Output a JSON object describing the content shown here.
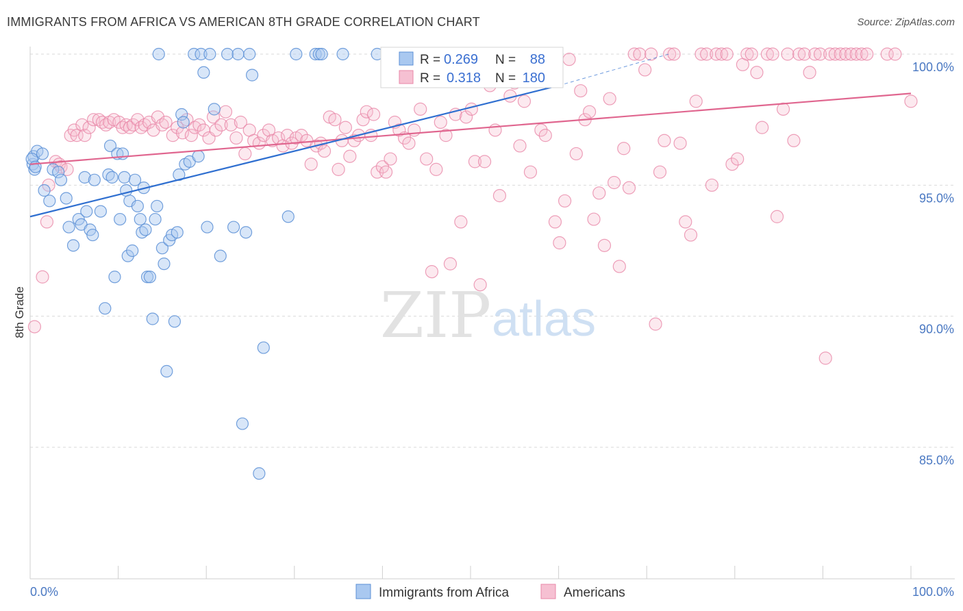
{
  "header": {
    "title": "IMMIGRANTS FROM AFRICA VS AMERICAN 8TH GRADE CORRELATION CHART",
    "source": "Source: ZipAtlas.com"
  },
  "watermark": {
    "zip": "ZIP",
    "atlas": "atlas"
  },
  "legend_box": {
    "row1": {
      "r_label": "R =",
      "r_value": "0.269",
      "n_label": "N =",
      "n_value": "88"
    },
    "row2": {
      "r_label": "R =",
      "r_value": "0.318",
      "n_label": "N =",
      "n_value": "180"
    }
  },
  "bottom_legend": {
    "series1": "Immigrants from Africa",
    "series2": "Americans"
  },
  "colors": {
    "blue_fill": "#a9c8f0",
    "blue_stroke": "#5b8fd6",
    "blue_line": "#2f6fd0",
    "pink_fill": "#f6c0d2",
    "pink_stroke": "#e887a8",
    "pink_line": "#e0668f",
    "tick_text": "#4a78c2",
    "grid": "#d9d9d9"
  },
  "chart_data": {
    "type": "scatter",
    "title": "IMMIGRANTS FROM AFRICA VS AMERICAN 8TH GRADE CORRELATION CHART",
    "xlabel": "",
    "ylabel": "8th Grade",
    "xlim": [
      0,
      100
    ],
    "ylim": [
      80.0,
      100.6
    ],
    "x_tick_labels": [
      "0.0%",
      "100.0%"
    ],
    "y_ticks": [
      85,
      90,
      95,
      100
    ],
    "y_tick_labels": [
      "85.0%",
      "90.0%",
      "95.0%",
      "100.0%"
    ],
    "grid": true,
    "legend_position": "top-center",
    "series": [
      {
        "name": "Immigrants from Africa",
        "r": 0.269,
        "n": 88,
        "trend": {
          "x": [
            0,
            60
          ],
          "y": [
            93.8,
            98.8
          ]
        },
        "trend_extension": {
          "x": [
            60,
            72.5
          ],
          "y": [
            98.8,
            100.0
          ]
        },
        "points": [
          [
            0.3,
            95.8
          ],
          [
            0.4,
            96.1
          ],
          [
            0.8,
            96.3
          ],
          [
            0.5,
            95.6
          ],
          [
            1.4,
            96.2
          ],
          [
            1.6,
            94.8
          ],
          [
            2.2,
            94.4
          ],
          [
            2.6,
            95.6
          ],
          [
            3.2,
            95.5
          ],
          [
            3.5,
            95.2
          ],
          [
            4.1,
            94.5
          ],
          [
            4.4,
            93.4
          ],
          [
            4.9,
            92.7
          ],
          [
            5.5,
            93.7
          ],
          [
            5.8,
            93.5
          ],
          [
            6.2,
            95.3
          ],
          [
            6.4,
            94.0
          ],
          [
            6.8,
            93.3
          ],
          [
            7.1,
            93.1
          ],
          [
            7.3,
            95.2
          ],
          [
            8.0,
            94.0
          ],
          [
            8.5,
            90.3
          ],
          [
            8.9,
            95.4
          ],
          [
            9.1,
            96.5
          ],
          [
            9.3,
            95.3
          ],
          [
            9.6,
            91.5
          ],
          [
            9.9,
            96.2
          ],
          [
            10.2,
            93.7
          ],
          [
            10.5,
            96.2
          ],
          [
            10.7,
            95.3
          ],
          [
            10.9,
            94.8
          ],
          [
            11.1,
            92.3
          ],
          [
            11.3,
            94.4
          ],
          [
            11.6,
            92.5
          ],
          [
            11.9,
            95.2
          ],
          [
            12.2,
            94.2
          ],
          [
            12.5,
            93.7
          ],
          [
            12.7,
            93.2
          ],
          [
            12.9,
            94.9
          ],
          [
            13.1,
            93.3
          ],
          [
            13.3,
            91.5
          ],
          [
            13.6,
            91.5
          ],
          [
            13.9,
            89.9
          ],
          [
            14.2,
            93.7
          ],
          [
            14.4,
            94.2
          ],
          [
            14.6,
            100.0
          ],
          [
            15.0,
            92.6
          ],
          [
            15.2,
            92.0
          ],
          [
            15.5,
            87.9
          ],
          [
            15.8,
            92.9
          ],
          [
            16.1,
            93.1
          ],
          [
            16.4,
            89.8
          ],
          [
            16.7,
            93.2
          ],
          [
            16.9,
            95.4
          ],
          [
            17.2,
            97.7
          ],
          [
            17.4,
            97.4
          ],
          [
            17.6,
            95.8
          ],
          [
            18.1,
            95.9
          ],
          [
            18.6,
            100.0
          ],
          [
            19.1,
            96.1
          ],
          [
            19.4,
            100.0
          ],
          [
            19.7,
            99.3
          ],
          [
            20.1,
            93.4
          ],
          [
            20.4,
            100.0
          ],
          [
            20.9,
            97.9
          ],
          [
            21.6,
            92.3
          ],
          [
            22.4,
            100.0
          ],
          [
            23.1,
            93.4
          ],
          [
            23.6,
            100.0
          ],
          [
            24.1,
            85.9
          ],
          [
            24.5,
            93.2
          ],
          [
            24.9,
            100.0
          ],
          [
            25.2,
            99.2
          ],
          [
            26.0,
            84.0
          ],
          [
            26.5,
            88.8
          ],
          [
            29.3,
            93.8
          ],
          [
            30.2,
            100.0
          ],
          [
            32.4,
            100.0
          ],
          [
            32.8,
            100.0
          ],
          [
            33.1,
            100.0
          ],
          [
            35.5,
            100.0
          ],
          [
            39.4,
            100.0
          ],
          [
            43.3,
            100.0
          ],
          [
            47.5,
            100.0
          ],
          [
            52.5,
            100.0
          ],
          [
            59.2,
            100.0
          ],
          [
            0.2,
            96.0
          ],
          [
            0.6,
            95.7
          ]
        ]
      },
      {
        "name": "Americans",
        "r": 0.318,
        "n": 180,
        "trend": {
          "x": [
            0,
            100
          ],
          "y": [
            95.8,
            98.5
          ]
        },
        "points": [
          [
            0.5,
            89.6
          ],
          [
            1.4,
            91.5
          ],
          [
            1.9,
            93.6
          ],
          [
            2.1,
            95.0
          ],
          [
            2.9,
            95.9
          ],
          [
            3.3,
            95.8
          ],
          [
            3.5,
            95.7
          ],
          [
            4.2,
            95.6
          ],
          [
            4.6,
            96.9
          ],
          [
            5.0,
            97.1
          ],
          [
            5.3,
            96.9
          ],
          [
            5.9,
            97.3
          ],
          [
            6.2,
            96.9
          ],
          [
            6.7,
            97.2
          ],
          [
            7.2,
            97.5
          ],
          [
            7.8,
            97.5
          ],
          [
            8.2,
            97.4
          ],
          [
            8.6,
            97.3
          ],
          [
            9.0,
            97.4
          ],
          [
            9.5,
            97.5
          ],
          [
            10.1,
            97.4
          ],
          [
            10.5,
            97.2
          ],
          [
            10.9,
            97.3
          ],
          [
            11.3,
            97.2
          ],
          [
            11.7,
            97.3
          ],
          [
            12.2,
            97.5
          ],
          [
            12.6,
            97.2
          ],
          [
            13.0,
            97.3
          ],
          [
            13.5,
            97.4
          ],
          [
            14.0,
            97.1
          ],
          [
            14.5,
            97.6
          ],
          [
            15.0,
            97.3
          ],
          [
            15.4,
            97.4
          ],
          [
            16.2,
            96.9
          ],
          [
            16.7,
            97.2
          ],
          [
            17.3,
            97.0
          ],
          [
            17.8,
            97.5
          ],
          [
            18.3,
            96.9
          ],
          [
            18.7,
            97.2
          ],
          [
            19.2,
            97.3
          ],
          [
            19.7,
            97.1
          ],
          [
            20.3,
            96.8
          ],
          [
            20.8,
            97.6
          ],
          [
            21.1,
            97.1
          ],
          [
            21.7,
            97.3
          ],
          [
            22.2,
            97.8
          ],
          [
            22.8,
            97.3
          ],
          [
            23.4,
            96.8
          ],
          [
            23.9,
            97.4
          ],
          [
            24.4,
            96.2
          ],
          [
            24.9,
            97.1
          ],
          [
            25.4,
            96.7
          ],
          [
            26.0,
            96.6
          ],
          [
            26.5,
            96.9
          ],
          [
            27.1,
            97.1
          ],
          [
            27.5,
            96.7
          ],
          [
            28.2,
            96.8
          ],
          [
            28.7,
            96.5
          ],
          [
            29.2,
            96.9
          ],
          [
            29.7,
            96.6
          ],
          [
            30.2,
            96.8
          ],
          [
            30.8,
            96.9
          ],
          [
            31.4,
            96.7
          ],
          [
            31.9,
            95.8
          ],
          [
            32.5,
            96.5
          ],
          [
            33.0,
            96.6
          ],
          [
            33.4,
            96.3
          ],
          [
            34.0,
            97.6
          ],
          [
            34.6,
            97.5
          ],
          [
            35.0,
            95.6
          ],
          [
            35.4,
            96.7
          ],
          [
            35.8,
            97.2
          ],
          [
            36.3,
            96.1
          ],
          [
            36.8,
            96.7
          ],
          [
            37.3,
            96.9
          ],
          [
            37.8,
            97.5
          ],
          [
            38.2,
            97.8
          ],
          [
            38.7,
            96.9
          ],
          [
            39.0,
            97.7
          ],
          [
            39.4,
            95.5
          ],
          [
            40.0,
            95.7
          ],
          [
            40.4,
            95.5
          ],
          [
            40.9,
            96.0
          ],
          [
            41.4,
            97.4
          ],
          [
            41.9,
            97.1
          ],
          [
            42.5,
            96.8
          ],
          [
            43.0,
            96.6
          ],
          [
            43.6,
            97.1
          ],
          [
            44.3,
            97.9
          ],
          [
            45.0,
            96.0
          ],
          [
            45.6,
            91.7
          ],
          [
            46.1,
            95.6
          ],
          [
            46.6,
            97.4
          ],
          [
            47.2,
            96.9
          ],
          [
            47.7,
            92.0
          ],
          [
            48.3,
            97.7
          ],
          [
            48.9,
            93.6
          ],
          [
            49.5,
            97.6
          ],
          [
            50.1,
            97.9
          ],
          [
            50.5,
            95.9
          ],
          [
            51.1,
            91.2
          ],
          [
            51.6,
            95.9
          ],
          [
            52.2,
            98.8
          ],
          [
            52.8,
            97.1
          ],
          [
            53.3,
            94.6
          ],
          [
            53.9,
            99.3
          ],
          [
            54.5,
            98.4
          ],
          [
            55.0,
            98.9
          ],
          [
            55.6,
            96.5
          ],
          [
            56.1,
            98.2
          ],
          [
            56.8,
            95.5
          ],
          [
            57.4,
            99.0
          ],
          [
            58.0,
            97.1
          ],
          [
            58.5,
            96.9
          ],
          [
            59.1,
            100.0
          ],
          [
            59.6,
            93.6
          ],
          [
            60.1,
            92.8
          ],
          [
            60.7,
            94.4
          ],
          [
            61.2,
            99.8
          ],
          [
            62.0,
            96.2
          ],
          [
            62.5,
            98.6
          ],
          [
            63.0,
            97.5
          ],
          [
            63.5,
            97.8
          ],
          [
            64.0,
            93.7
          ],
          [
            64.6,
            94.7
          ],
          [
            65.2,
            92.7
          ],
          [
            65.8,
            98.3
          ],
          [
            66.3,
            95.1
          ],
          [
            66.9,
            91.9
          ],
          [
            67.4,
            96.4
          ],
          [
            68.0,
            94.9
          ],
          [
            68.6,
            100.0
          ],
          [
            69.2,
            100.0
          ],
          [
            69.8,
            99.4
          ],
          [
            70.5,
            100.0
          ],
          [
            71.0,
            89.7
          ],
          [
            71.5,
            95.5
          ],
          [
            72.0,
            96.7
          ],
          [
            72.6,
            100.0
          ],
          [
            73.1,
            100.0
          ],
          [
            73.8,
            96.6
          ],
          [
            74.4,
            93.6
          ],
          [
            75.0,
            93.1
          ],
          [
            75.6,
            98.2
          ],
          [
            76.2,
            100.0
          ],
          [
            76.8,
            100.0
          ],
          [
            77.4,
            95.0
          ],
          [
            77.9,
            100.0
          ],
          [
            78.5,
            100.0
          ],
          [
            79.1,
            100.0
          ],
          [
            79.7,
            95.8
          ],
          [
            80.3,
            96.0
          ],
          [
            80.9,
            99.6
          ],
          [
            81.4,
            100.0
          ],
          [
            81.9,
            100.0
          ],
          [
            82.5,
            99.3
          ],
          [
            83.1,
            97.2
          ],
          [
            83.7,
            100.0
          ],
          [
            84.3,
            100.0
          ],
          [
            84.8,
            93.8
          ],
          [
            85.5,
            97.9
          ],
          [
            86.0,
            100.0
          ],
          [
            86.7,
            96.7
          ],
          [
            87.3,
            100.0
          ],
          [
            87.9,
            100.0
          ],
          [
            88.5,
            99.3
          ],
          [
            89.1,
            100.0
          ],
          [
            89.7,
            100.0
          ],
          [
            90.3,
            88.4
          ],
          [
            90.8,
            100.0
          ],
          [
            91.4,
            100.0
          ],
          [
            92.0,
            100.0
          ],
          [
            92.6,
            100.0
          ],
          [
            93.2,
            100.0
          ],
          [
            93.8,
            100.0
          ],
          [
            94.4,
            100.0
          ],
          [
            95.0,
            100.0
          ],
          [
            97.3,
            100.0
          ],
          [
            98.2,
            100.0
          ],
          [
            100.0,
            98.2
          ]
        ]
      }
    ]
  }
}
